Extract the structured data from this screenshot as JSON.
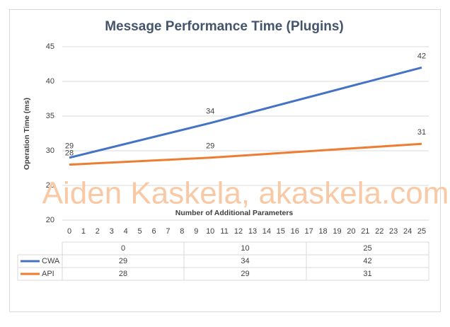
{
  "chart_data": {
    "type": "line",
    "title": "Message Performance Time (Plugins)",
    "ylabel": "Operation Time (ms)",
    "xlabel": "Number of Additional Parameters",
    "watermark": "Aiden Kaskela, akaskela.com",
    "x": [
      0,
      10,
      25
    ],
    "xlim": [
      0,
      25
    ],
    "xticks": [
      0,
      1,
      2,
      3,
      4,
      5,
      6,
      7,
      8,
      9,
      10,
      11,
      12,
      13,
      14,
      15,
      16,
      17,
      18,
      19,
      20,
      21,
      22,
      23,
      24,
      25
    ],
    "ylim": [
      20,
      45
    ],
    "yticks": [
      20,
      25,
      30,
      35,
      40,
      45
    ],
    "grid": true,
    "series": [
      {
        "name": "CWA",
        "color": "#4472c4",
        "values": [
          29,
          34,
          42
        ]
      },
      {
        "name": "API",
        "color": "#ed7d31",
        "values": [
          28,
          29,
          31
        ]
      }
    ]
  }
}
